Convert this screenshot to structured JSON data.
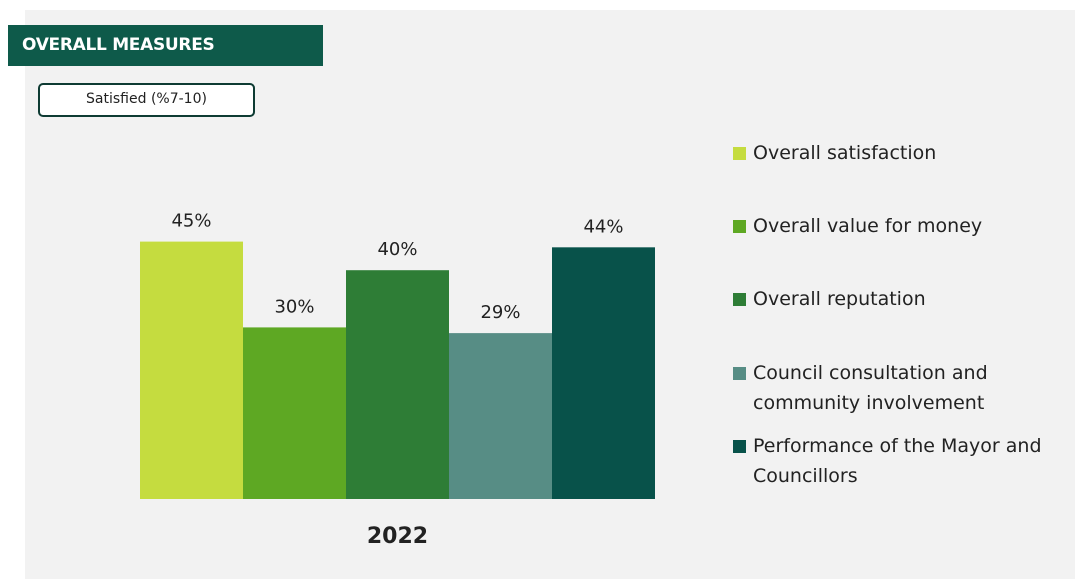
{
  "chart_data": {
    "type": "bar",
    "title": "OVERALL MEASURES",
    "subtitle": "Satisfied (%7-10)",
    "categories": [
      "2022"
    ],
    "ylim": [
      0,
      50
    ],
    "series": [
      {
        "name": "Overall satisfaction",
        "color": "#c5dc3f",
        "values": [
          45
        ],
        "value_labels": [
          "45%"
        ]
      },
      {
        "name": "Overall value for money",
        "color": "#5ea823",
        "values": [
          30
        ],
        "value_labels": [
          "30%"
        ]
      },
      {
        "name": "Overall reputation",
        "color": "#2e7d36",
        "values": [
          40
        ],
        "value_labels": [
          "40%"
        ]
      },
      {
        "name": "Council consultation and community involvement",
        "color": "#578d85",
        "values": [
          29
        ],
        "value_labels": [
          "29%"
        ]
      },
      {
        "name": "Performance of the Mayor and Councillors",
        "color": "#08524a",
        "values": [
          44
        ],
        "value_labels": [
          "44%"
        ]
      }
    ]
  }
}
